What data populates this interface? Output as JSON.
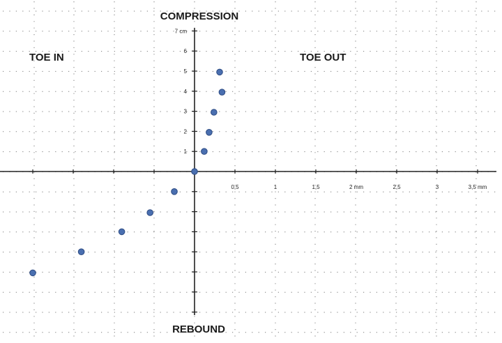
{
  "chart_data": {
    "type": "scatter",
    "labels": {
      "top": "COMPRESSION",
      "bottom": "REBOUND",
      "left": "TOE IN",
      "right": "TOE OUT"
    },
    "x_ticks": [
      {
        "value": 0.5,
        "label": "0,5"
      },
      {
        "value": 1,
        "label": "1"
      },
      {
        "value": 1.5,
        "label": "1,5"
      },
      {
        "value": 2,
        "label": "2 mm"
      },
      {
        "value": 2.5,
        "label": "2,5"
      },
      {
        "value": 3,
        "label": "3"
      },
      {
        "value": 3.5,
        "label": "3,5 mm"
      }
    ],
    "y_ticks": [
      {
        "value": 1,
        "label": "1"
      },
      {
        "value": 2,
        "label": "2"
      },
      {
        "value": 3,
        "label": "3"
      },
      {
        "value": 4,
        "label": "4"
      },
      {
        "value": 5,
        "label": "5"
      },
      {
        "value": 6,
        "label": "6"
      },
      {
        "value": 7,
        "label": "7 cm"
      }
    ],
    "xlim": [
      -2.0,
      3.6
    ],
    "ylim": [
      -7.4,
      7.0
    ],
    "grid": true,
    "series": [
      {
        "color": "#4a6fb0",
        "points": [
          {
            "x": 0.0,
            "y": 0.0
          },
          {
            "x": 0.12,
            "y": 1.0
          },
          {
            "x": 0.18,
            "y": 1.95
          },
          {
            "x": 0.24,
            "y": 2.95
          },
          {
            "x": 0.34,
            "y": 3.95
          },
          {
            "x": 0.31,
            "y": 4.95
          },
          {
            "x": -0.25,
            "y": -1.0
          },
          {
            "x": -0.55,
            "y": -2.05
          },
          {
            "x": -0.9,
            "y": -3.0
          },
          {
            "x": -1.4,
            "y": -4.0
          },
          {
            "x": -2.0,
            "y": -5.05
          }
        ]
      }
    ]
  }
}
